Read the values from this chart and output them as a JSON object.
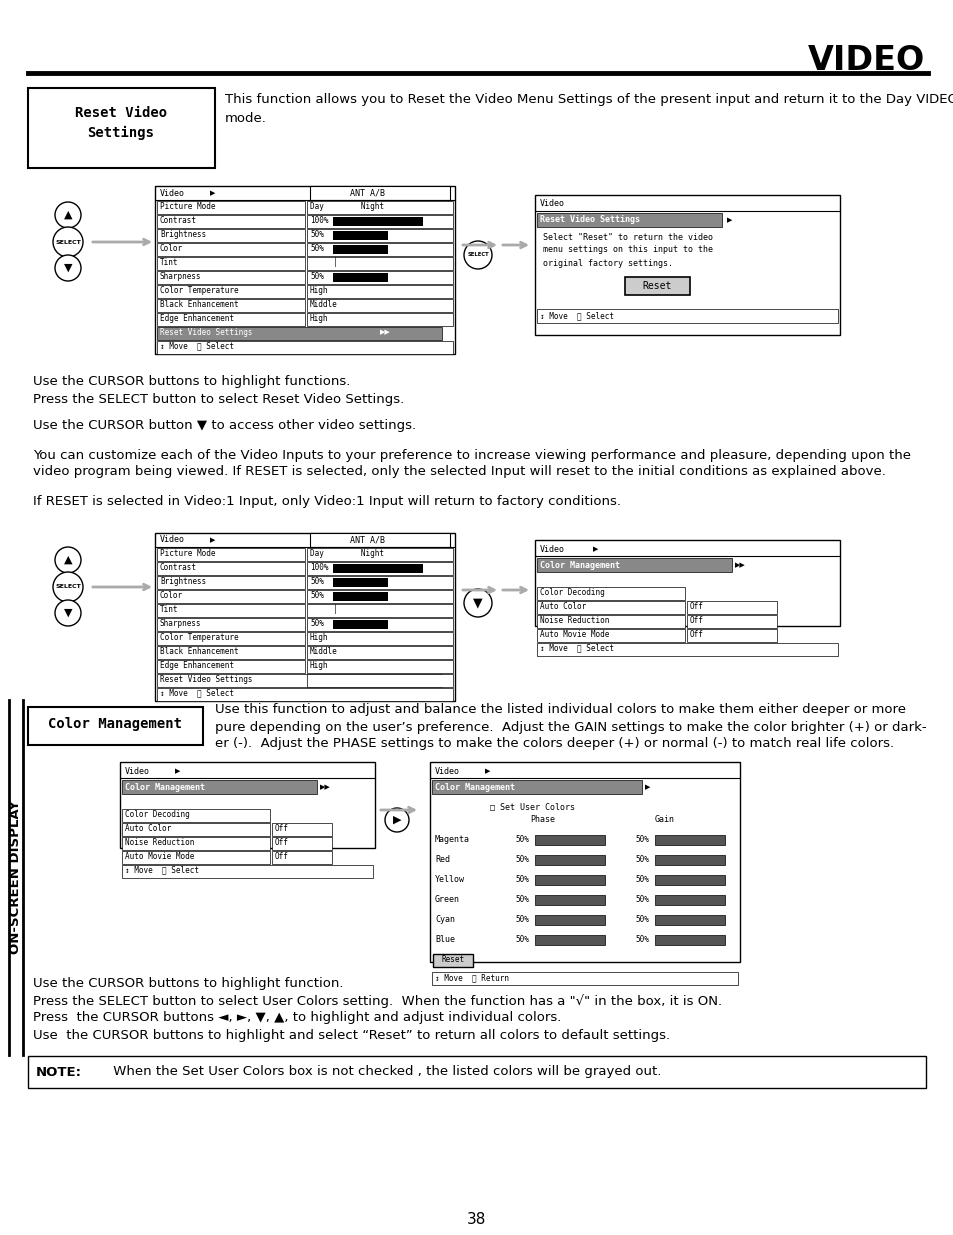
{
  "page_title": "VIDEO",
  "page_number": "38",
  "left_sidebar_text": "ON-SCREEN DISPLAY",
  "section1_box_line1": "Reset Video",
  "section1_box_line2": "Settings",
  "section1_desc_line1": "This function allows you to Reset the Video Menu Settings of the present input and return it to the Day VIDEO",
  "section1_desc_line2": "mode.",
  "cursor_text1_line1": "Use the CURSOR buttons to highlight functions.",
  "cursor_text1_line2": "Press the SELECT button to select Reset Video Settings.",
  "cursor_text2": "Use the CURSOR button ▼ to access other video settings.",
  "body_text1_line1": "You can customize each of the Video Inputs to your preference to increase viewing performance and pleasure, depending upon the",
  "body_text1_line2": "video program being viewed. If RESET is selected, only the selected Input will reset to the initial conditions as explained above.",
  "body_text2": "If RESET is selected in Video:1 Input, only Video:1 Input will return to factory conditions.",
  "section2_box_text": "Color Management",
  "section2_desc_line1": "Use this function to adjust and balance the listed individual colors to make them either deeper or more",
  "section2_desc_line2": "pure depending on the user’s preference.  Adjust the GAIN settings to make the color brighter (+) or dark-",
  "section2_desc_line3": "er (-).  Adjust the PHASE settings to make the colors deeper (+) or normal (-) to match real life colors.",
  "cursor_text3_line1": "Use the CURSOR buttons to highlight function.",
  "cursor_text3_line2": "Press the SELECT button to select User Colors setting.  When the function has a \"√\" in the box, it is ON.",
  "cursor_text3_line3": "Press  the CURSOR buttons ◄, ►, ▼, ▲, to highlight and adjust individual colors.",
  "cursor_text3_line4": "Use  the CURSOR buttons to highlight and select “Reset” to return all colors to default settings.",
  "note_label": "NOTE:",
  "note_body": "     When the Set User Colors box is not checked , the listed colors will be grayed out.",
  "bg_color": "#ffffff",
  "text_color": "#000000"
}
